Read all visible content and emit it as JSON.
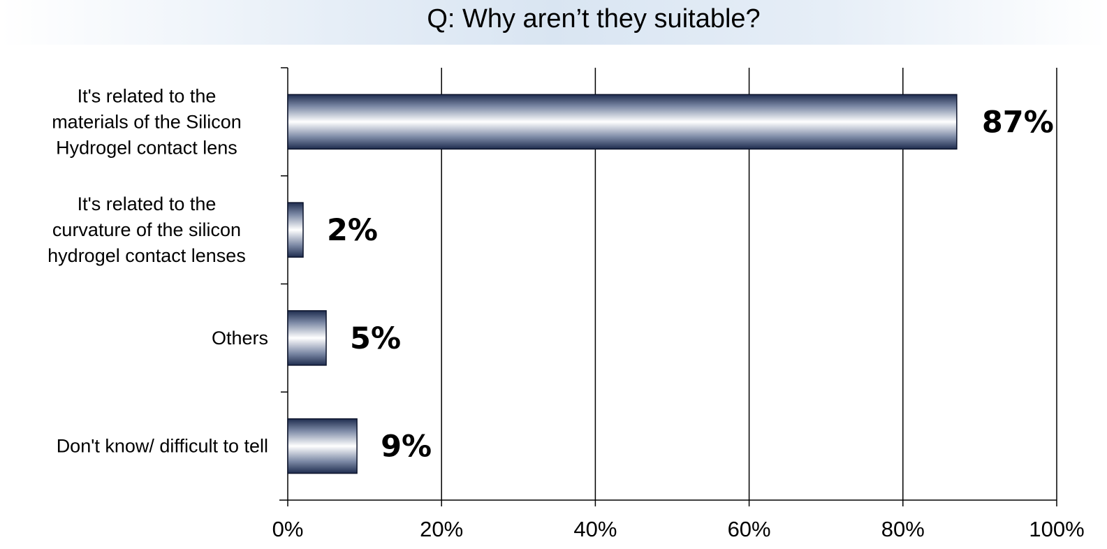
{
  "chart_data": {
    "type": "bar",
    "orientation": "horizontal",
    "title": "Q: Why aren’t they suitable?",
    "categories": [
      "It's related to the\nmaterials of the Silicon\nHydrogel contact lens",
      "It's related to the\ncurvature of the silicon\nhydrogel contact lenses",
      "Others",
      "Don't know/ difficult to tell"
    ],
    "values": [
      87,
      2,
      5,
      9
    ],
    "data_labels": [
      "87%",
      "2%",
      "5%",
      "9%"
    ],
    "xlim": [
      0,
      100
    ],
    "x_ticks": [
      0,
      20,
      40,
      60,
      80,
      100
    ],
    "x_tick_labels": [
      "0%",
      "20%",
      "40%",
      "60%",
      "80%",
      "100%"
    ],
    "grid": true,
    "legend": "none",
    "bar_colors": {
      "edge": "#1f2d4f",
      "center": "#ffffff"
    }
  }
}
